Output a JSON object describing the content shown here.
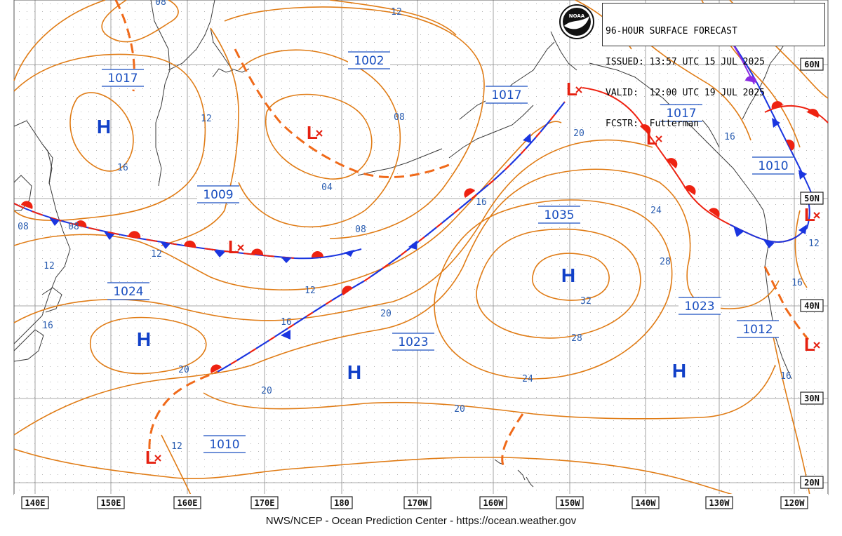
{
  "header": {
    "title": "96-HOUR SURFACE FORECAST",
    "issued_label": "ISSUED:",
    "issued_value": "13:57 UTC 15 JUL 2025",
    "valid_label": "VALID:",
    "valid_value": "12:00 UTC 19 JUL 2025",
    "forecaster_label": "FCSTR:",
    "forecaster_value": "Futterman"
  },
  "footer": "NWS/NCEP - Ocean Prediction Center - https://ocean.weather.gov",
  "logo_text": "NOAA",
  "longitude_labels": [
    "140E",
    "150E",
    "160E",
    "170E",
    "180",
    "170W",
    "160W",
    "150W",
    "140W",
    "130W",
    "120W"
  ],
  "latitude_labels": [
    "60N",
    "50N",
    "40N",
    "30N",
    "20N"
  ],
  "pressure_centers": [
    {
      "type": "H",
      "value": "1017"
    },
    {
      "type": "H",
      "value": "1024"
    },
    {
      "type": "L",
      "value": "1009"
    },
    {
      "type": "L",
      "value": "1002"
    },
    {
      "type": "L",
      "value": "1017"
    },
    {
      "type": "H",
      "value": "1035"
    },
    {
      "type": "H",
      "value": "1023"
    },
    {
      "type": "H",
      "value": "1023"
    },
    {
      "type": "L",
      "value": "1010"
    },
    {
      "type": "L",
      "value": "1017"
    },
    {
      "type": "L",
      "value": "1010"
    },
    {
      "type": "L",
      "value": "1012"
    }
  ],
  "isobar_labels": [
    "08",
    "12",
    "16",
    "20",
    "24",
    "28",
    "32",
    "04",
    "12",
    "16",
    "20",
    "24",
    "28",
    "20",
    "16",
    "12",
    "08",
    "12",
    "16",
    "16",
    "12",
    "16",
    "12",
    "20",
    "12",
    "16",
    "20",
    "08",
    "12"
  ],
  "colors": {
    "isobar": "#e07c16",
    "high": "#1140c8",
    "low": "#e52010",
    "cold_front": "#1a35e0",
    "warm_front": "#ee2211",
    "trough": "#f06a1a",
    "occluded": "#8a2be2",
    "label_box": "#1a4fc0",
    "grid": "#8c8c8c",
    "coast": "#3a3a3a"
  }
}
